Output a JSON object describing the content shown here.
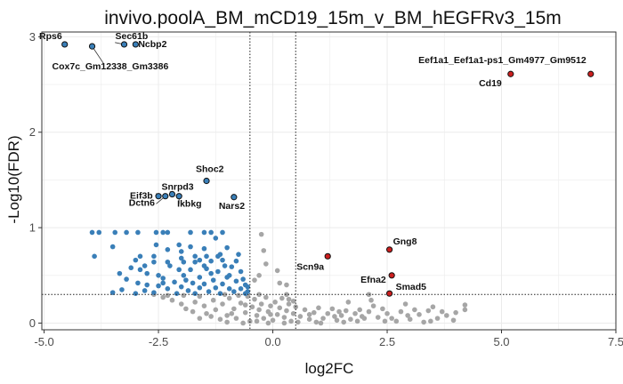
{
  "chart_data": {
    "type": "scatter",
    "title": "invivo.poolA_BM_mCD19_15m_v_BM_hEGFRv3_15m",
    "xlabel": "log2FC",
    "ylabel": "-Log10(FDR)",
    "xlim": [
      -5.05,
      7.5
    ],
    "ylim": [
      -0.07,
      3.05
    ],
    "xticks": [
      -5.0,
      -2.5,
      0.0,
      2.5,
      5.0,
      7.5
    ],
    "xtick_labels": [
      "-5.0",
      "-2.5",
      "0.0",
      "2.5",
      "5.0",
      "7.5"
    ],
    "yticks": [
      0,
      1,
      2,
      3
    ],
    "ytick_labels": [
      "0",
      "1",
      "2",
      "3"
    ],
    "grid": true,
    "legend": "none",
    "thresholds": {
      "fc_left": -0.5,
      "fc_right": 0.5,
      "fdr_line": 0.3
    },
    "colors": {
      "not_significant": "#a6a6a6",
      "down": "#3a7fb8",
      "up": "#cc1f1f",
      "highlight_outline": "#111111",
      "threshold_line": "#222222",
      "grid": "#ebebeb",
      "panel_border": "#333333"
    },
    "labeled_points": [
      {
        "label": "Rps6",
        "x": -4.55,
        "y": 2.92,
        "group": "down"
      },
      {
        "label": "Sec61b",
        "x": -3.25,
        "y": 2.92,
        "group": "down"
      },
      {
        "label": "Ncbp2",
        "x": -3.0,
        "y": 2.92,
        "group": "down"
      },
      {
        "label": "Cox7c_Gm12338_Gm3386",
        "x": -3.95,
        "y": 2.9,
        "group": "down"
      },
      {
        "label": "Eef1a1_Eef1a1-ps1_Gm4977_Gm9512",
        "x": 6.95,
        "y": 2.61,
        "group": "up"
      },
      {
        "label": "Cd19",
        "x": 5.2,
        "y": 2.61,
        "group": "up"
      },
      {
        "label": "Shoc2",
        "x": -1.45,
        "y": 1.49,
        "group": "down"
      },
      {
        "label": "Nars2",
        "x": -0.85,
        "y": 1.32,
        "group": "down"
      },
      {
        "label": "Eif3b",
        "x": -2.5,
        "y": 1.33,
        "group": "down"
      },
      {
        "label": "Snrpd3",
        "x": -2.2,
        "y": 1.35,
        "group": "down"
      },
      {
        "label": "Dctn6",
        "x": -2.35,
        "y": 1.33,
        "group": "down"
      },
      {
        "label": "Ikbkg",
        "x": -2.05,
        "y": 1.33,
        "group": "down"
      },
      {
        "label": "Gng8",
        "x": 2.55,
        "y": 0.77,
        "group": "up"
      },
      {
        "label": "Scn9a",
        "x": 1.2,
        "y": 0.7,
        "group": "up"
      },
      {
        "label": "Efna2",
        "x": 2.6,
        "y": 0.5,
        "group": "up"
      },
      {
        "label": "Smad5",
        "x": 2.55,
        "y": 0.31,
        "group": "up"
      }
    ],
    "series": [
      {
        "group": "down",
        "points": [
          [
            -3.95,
            0.95
          ],
          [
            -3.8,
            0.95
          ],
          [
            -3.45,
            0.95
          ],
          [
            -3.2,
            0.95
          ],
          [
            -2.95,
            0.95
          ],
          [
            -2.55,
            0.95
          ],
          [
            -2.4,
            0.95
          ],
          [
            -2.3,
            0.95
          ],
          [
            -1.8,
            0.95
          ],
          [
            -1.5,
            0.95
          ],
          [
            -1.35,
            0.95
          ],
          [
            -1.1,
            0.95
          ],
          [
            -1.25,
            0.89
          ],
          [
            -2.05,
            0.82
          ],
          [
            -2.55,
            0.82
          ],
          [
            -2.3,
            0.77
          ],
          [
            -3.5,
            0.8
          ],
          [
            -1.8,
            0.8
          ],
          [
            -1.5,
            0.78
          ],
          [
            -1.0,
            0.79
          ],
          [
            -2.0,
            0.75
          ],
          [
            -1.15,
            0.72
          ],
          [
            -1.45,
            0.7
          ],
          [
            -1.7,
            0.7
          ],
          [
            -2.6,
            0.7
          ],
          [
            -3.9,
            0.7
          ],
          [
            -2.9,
            0.7
          ],
          [
            -3.0,
            0.66
          ],
          [
            -2.6,
            0.64
          ],
          [
            -2.3,
            0.64
          ],
          [
            -1.95,
            0.64
          ],
          [
            -1.7,
            0.64
          ],
          [
            -1.35,
            0.65
          ],
          [
            -1.1,
            0.66
          ],
          [
            -0.8,
            0.65
          ],
          [
            -2.8,
            0.6
          ],
          [
            -1.5,
            0.6
          ],
          [
            -0.9,
            0.59
          ],
          [
            -3.1,
            0.58
          ],
          [
            -2.9,
            0.56
          ],
          [
            -2.05,
            0.56
          ],
          [
            -1.8,
            0.56
          ],
          [
            -1.2,
            0.54
          ],
          [
            -0.7,
            0.54
          ],
          [
            -2.75,
            0.52
          ],
          [
            -2.5,
            0.5
          ],
          [
            -1.95,
            0.5
          ],
          [
            -1.6,
            0.48
          ],
          [
            -1.0,
            0.48
          ],
          [
            -3.2,
            0.46
          ],
          [
            -2.4,
            0.47
          ],
          [
            -1.3,
            0.45
          ],
          [
            -0.8,
            0.44
          ],
          [
            -2.15,
            0.43
          ],
          [
            -1.75,
            0.42
          ],
          [
            -1.5,
            0.41
          ],
          [
            -1.1,
            0.41
          ],
          [
            -0.6,
            0.4
          ],
          [
            -2.95,
            0.42
          ],
          [
            -2.5,
            0.39
          ],
          [
            -2.0,
            0.38
          ],
          [
            -1.6,
            0.37
          ],
          [
            -1.25,
            0.37
          ],
          [
            -0.95,
            0.36
          ],
          [
            -0.7,
            0.36
          ],
          [
            -2.3,
            0.36
          ],
          [
            -3.3,
            0.35
          ],
          [
            -2.8,
            0.34
          ],
          [
            -1.85,
            0.34
          ],
          [
            -1.4,
            0.33
          ],
          [
            -0.85,
            0.33
          ],
          [
            -0.55,
            0.33
          ],
          [
            -3.5,
            0.32
          ],
          [
            -3.0,
            0.31
          ],
          [
            -2.6,
            0.32
          ],
          [
            -2.1,
            0.31
          ],
          [
            -1.7,
            0.31
          ],
          [
            -1.15,
            0.31
          ],
          [
            -0.6,
            0.31
          ],
          [
            -2.4,
            0.42
          ],
          [
            -1.35,
            0.52
          ],
          [
            -2.25,
            0.6
          ],
          [
            -1.6,
            0.66
          ],
          [
            -0.65,
            0.46
          ],
          [
            -0.55,
            0.38
          ],
          [
            -1.05,
            0.6
          ],
          [
            -1.9,
            0.45
          ],
          [
            -2.75,
            0.4
          ],
          [
            -3.35,
            0.52
          ],
          [
            -1.2,
            0.7
          ],
          [
            -0.75,
            0.72
          ],
          [
            -2.0,
            0.68
          ],
          [
            -1.45,
            0.57
          ],
          [
            -0.95,
            0.5
          ]
        ]
      },
      {
        "group": "ns",
        "points": [
          [
            -2.4,
            0.27
          ],
          [
            -2.2,
            0.24
          ],
          [
            -2.0,
            0.2
          ],
          [
            -1.9,
            0.15
          ],
          [
            -1.75,
            0.12
          ],
          [
            -1.7,
            0.22
          ],
          [
            -1.5,
            0.18
          ],
          [
            -1.45,
            0.1
          ],
          [
            -1.3,
            0.24
          ],
          [
            -1.25,
            0.14
          ],
          [
            -1.1,
            0.2
          ],
          [
            -1.0,
            0.08
          ],
          [
            -0.95,
            0.26
          ],
          [
            -0.85,
            0.15
          ],
          [
            -0.8,
            0.05
          ],
          [
            -0.7,
            0.21
          ],
          [
            -0.6,
            0.11
          ],
          [
            -0.55,
            0.28
          ],
          [
            -0.5,
            0.02
          ],
          [
            -0.45,
            0.17
          ],
          [
            -0.4,
            0.25
          ],
          [
            -0.35,
            0.08
          ],
          [
            -0.3,
            0.14
          ],
          [
            -0.25,
            0.2
          ],
          [
            -0.2,
            0.05
          ],
          [
            -0.15,
            0.27
          ],
          [
            -0.1,
            0.12
          ],
          [
            -0.05,
            0.18
          ],
          [
            0.0,
            0.03
          ],
          [
            0.05,
            0.22
          ],
          [
            0.1,
            0.09
          ],
          [
            0.15,
            0.16
          ],
          [
            0.2,
            0.26
          ],
          [
            0.25,
            0.06
          ],
          [
            0.3,
            0.13
          ],
          [
            0.35,
            0.2
          ],
          [
            0.4,
            0.02
          ],
          [
            0.45,
            0.1
          ],
          [
            0.5,
            0.17
          ],
          [
            0.6,
            0.07
          ],
          [
            0.7,
            0.14
          ],
          [
            0.8,
            0.04
          ],
          [
            0.9,
            0.11
          ],
          [
            1.0,
            0.16
          ],
          [
            1.1,
            0.05
          ],
          [
            1.2,
            0.1
          ],
          [
            1.3,
            0.15
          ],
          [
            1.4,
            0.03
          ],
          [
            1.5,
            0.08
          ],
          [
            1.6,
            0.13
          ],
          [
            1.7,
            0.04
          ],
          [
            1.8,
            0.1
          ],
          [
            1.9,
            0.14
          ],
          [
            2.0,
            0.05
          ],
          [
            2.1,
            0.12
          ],
          [
            2.2,
            0.18
          ],
          [
            2.3,
            0.06
          ],
          [
            2.5,
            0.1
          ],
          [
            2.6,
            0.05
          ],
          [
            2.8,
            0.12
          ],
          [
            3.0,
            0.04
          ],
          [
            3.2,
            0.09
          ],
          [
            3.4,
            0.13
          ],
          [
            3.6,
            0.05
          ],
          [
            3.8,
            0.08
          ],
          [
            4.0,
            0.11
          ],
          [
            4.2,
            0.14
          ],
          [
            4.2,
            0.19
          ],
          [
            3.5,
            0.17
          ],
          [
            2.9,
            0.2
          ],
          [
            1.65,
            0.22
          ],
          [
            -1.05,
            0.3
          ],
          [
            -0.3,
            0.3
          ],
          [
            0.3,
            0.3
          ],
          [
            -0.3,
            0.5
          ],
          [
            -0.15,
            0.62
          ],
          [
            -0.2,
            0.76
          ],
          [
            -0.25,
            0.93
          ],
          [
            -0.4,
            0.45
          ],
          [
            0.15,
            0.42
          ],
          [
            0.3,
            0.4
          ],
          [
            0.1,
            0.55
          ],
          [
            0.35,
            0.25
          ],
          [
            2.1,
            0.3
          ],
          [
            2.15,
            0.24
          ],
          [
            -2.6,
            0.3
          ],
          [
            -2.3,
            0.29
          ],
          [
            -1.95,
            0.29
          ],
          [
            -1.6,
            0.28
          ],
          [
            -0.75,
            0.29
          ],
          [
            -1.0,
            0.01
          ],
          [
            -0.65,
            0.0
          ],
          [
            -0.1,
            0.0
          ],
          [
            0.55,
            0.01
          ],
          [
            1.05,
            0.0
          ],
          [
            1.55,
            0.01
          ],
          [
            -1.35,
            0.07
          ],
          [
            -0.9,
            0.1
          ],
          [
            -0.35,
            0.02
          ],
          [
            0.25,
            0.0
          ],
          [
            0.8,
            0.09
          ],
          [
            1.35,
            0.07
          ],
          [
            1.85,
            0.02
          ],
          [
            2.4,
            0.15
          ],
          [
            2.7,
            0.02
          ],
          [
            3.1,
            0.14
          ],
          [
            3.3,
            0.01
          ],
          [
            3.7,
            0.12
          ],
          [
            -1.6,
            0.05
          ],
          [
            -1.15,
            0.04
          ],
          [
            -0.6,
            0.19
          ],
          [
            -0.05,
            0.09
          ],
          [
            0.45,
            0.23
          ],
          [
            0.95,
            0.01
          ],
          [
            1.45,
            0.12
          ],
          [
            1.95,
            0.07
          ],
          [
            2.45,
            0.02
          ],
          [
            2.95,
            0.08
          ],
          [
            3.45,
            0.02
          ],
          [
            3.95,
            0.03
          ]
        ]
      },
      {
        "group": "up",
        "points": [
          [
            1.2,
            0.7
          ],
          [
            2.55,
            0.77
          ],
          [
            2.6,
            0.5
          ],
          [
            2.55,
            0.31
          ]
        ]
      }
    ]
  }
}
